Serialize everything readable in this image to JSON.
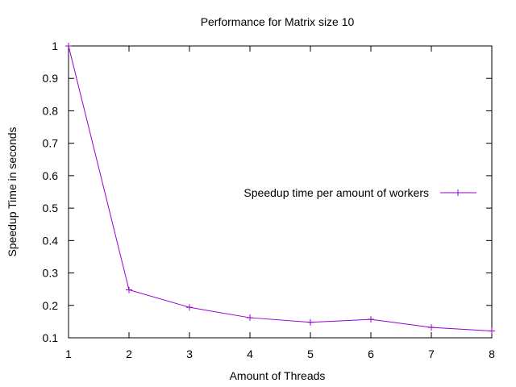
{
  "chart_data": {
    "type": "line",
    "title": "Performance for Matrix size 10",
    "xlabel": "Amount of Threads",
    "ylabel": "Speedup Time in seconds",
    "xlim": [
      1,
      8
    ],
    "ylim": [
      0.1,
      1
    ],
    "xticks": [
      1,
      2,
      3,
      4,
      5,
      6,
      7,
      8
    ],
    "yticks": [
      0.1,
      0.2,
      0.3,
      0.4,
      0.5,
      0.6,
      0.7,
      0.8,
      0.9,
      1
    ],
    "ytick_labels": [
      "0.1",
      "0.2",
      "0.3",
      "0.4",
      "0.5",
      "0.6",
      "0.7",
      "0.8",
      "0.9",
      "1"
    ],
    "grid": false,
    "legend_position": "center-right",
    "series": [
      {
        "name": "Speedup time per amount of workers",
        "color": "#9400d3",
        "marker": "plus",
        "x": [
          1,
          2,
          3,
          4,
          5,
          6,
          7,
          8
        ],
        "y": [
          1.0,
          0.248,
          0.194,
          0.162,
          0.148,
          0.157,
          0.132,
          0.121
        ]
      }
    ]
  }
}
